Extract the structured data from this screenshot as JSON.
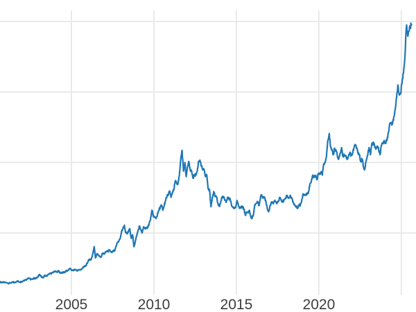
{
  "figure": {
    "background_color": "#ffffff",
    "title": "",
    "legend_visible": false
  },
  "chart_data": {
    "type": "line",
    "title": "",
    "xlabel": "",
    "ylabel": "",
    "grid": true,
    "legend_position": "none",
    "line_color": "#1f77b4",
    "grid_color": "#e7e7e7",
    "tick_label_color": "#3d3d3d",
    "xlim": [
      2000.67,
      2025.89
    ],
    "ylim_estimated": [
      148,
      3742
    ],
    "x_ticks": [
      {
        "year": 2005,
        "label": "2005"
      },
      {
        "year": 2010,
        "label": "2010"
      },
      {
        "year": 2015,
        "label": "2015"
      },
      {
        "year": 2020,
        "label": "2020"
      },
      {
        "year": 2025,
        "label": ""
      }
    ],
    "y_axis": {
      "tick_labels_visible": false,
      "gridline_values_estimated": [
        900,
        1800,
        2700,
        3600
      ]
    },
    "series": [
      {
        "name": "",
        "color": "#1f77b4",
        "points": [
          [
            2000.67,
            272
          ],
          [
            2000.71,
            274
          ],
          [
            2000.79,
            270
          ],
          [
            2000.88,
            266
          ],
          [
            2000.96,
            272
          ],
          [
            2001.04,
            266
          ],
          [
            2001.13,
            261
          ],
          [
            2001.21,
            258
          ],
          [
            2001.29,
            260
          ],
          [
            2001.38,
            268
          ],
          [
            2001.46,
            272
          ],
          [
            2001.54,
            266
          ],
          [
            2001.63,
            274
          ],
          [
            2001.71,
            287
          ],
          [
            2001.79,
            281
          ],
          [
            2001.88,
            275
          ],
          [
            2001.96,
            277
          ],
          [
            2002.04,
            284
          ],
          [
            2002.13,
            297
          ],
          [
            2002.21,
            302
          ],
          [
            2002.29,
            308
          ],
          [
            2002.38,
            327
          ],
          [
            2002.46,
            320
          ],
          [
            2002.54,
            305
          ],
          [
            2002.63,
            312
          ],
          [
            2002.71,
            323
          ],
          [
            2002.79,
            318
          ],
          [
            2002.88,
            322
          ],
          [
            2002.96,
            342
          ],
          [
            2003.04,
            368
          ],
          [
            2003.13,
            350
          ],
          [
            2003.21,
            336
          ],
          [
            2003.29,
            330
          ],
          [
            2003.38,
            360
          ],
          [
            2003.46,
            348
          ],
          [
            2003.54,
            356
          ],
          [
            2003.63,
            372
          ],
          [
            2003.71,
            382
          ],
          [
            2003.79,
            385
          ],
          [
            2003.88,
            395
          ],
          [
            2003.96,
            412
          ],
          [
            2004.04,
            412
          ],
          [
            2004.13,
            398
          ],
          [
            2004.21,
            420
          ],
          [
            2004.29,
            392
          ],
          [
            2004.38,
            388
          ],
          [
            2004.46,
            395
          ],
          [
            2004.54,
            398
          ],
          [
            2004.63,
            407
          ],
          [
            2004.71,
            415
          ],
          [
            2004.79,
            425
          ],
          [
            2004.88,
            445
          ],
          [
            2004.96,
            438
          ],
          [
            2005.04,
            423
          ],
          [
            2005.13,
            426
          ],
          [
            2005.21,
            433
          ],
          [
            2005.29,
            428
          ],
          [
            2005.38,
            418
          ],
          [
            2005.46,
            433
          ],
          [
            2005.54,
            428
          ],
          [
            2005.63,
            440
          ],
          [
            2005.71,
            465
          ],
          [
            2005.79,
            468
          ],
          [
            2005.88,
            485
          ],
          [
            2005.96,
            513
          ],
          [
            2006.04,
            560
          ],
          [
            2006.13,
            556
          ],
          [
            2006.21,
            570
          ],
          [
            2006.29,
            630
          ],
          [
            2006.38,
            725
          ],
          [
            2006.46,
            583
          ],
          [
            2006.54,
            632
          ],
          [
            2006.63,
            622
          ],
          [
            2006.71,
            598
          ],
          [
            2006.79,
            592
          ],
          [
            2006.88,
            638
          ],
          [
            2006.96,
            632
          ],
          [
            2007.04,
            645
          ],
          [
            2007.13,
            668
          ],
          [
            2007.21,
            662
          ],
          [
            2007.29,
            680
          ],
          [
            2007.38,
            662
          ],
          [
            2007.46,
            652
          ],
          [
            2007.54,
            672
          ],
          [
            2007.63,
            672
          ],
          [
            2007.71,
            730
          ],
          [
            2007.79,
            780
          ],
          [
            2007.88,
            800
          ],
          [
            2007.96,
            833
          ],
          [
            2008.04,
            920
          ],
          [
            2008.13,
            960
          ],
          [
            2008.21,
            1000
          ],
          [
            2008.29,
            905
          ],
          [
            2008.38,
            890
          ],
          [
            2008.46,
            920
          ],
          [
            2008.54,
            955
          ],
          [
            2008.63,
            830
          ],
          [
            2008.71,
            875
          ],
          [
            2008.79,
            725
          ],
          [
            2008.88,
            800
          ],
          [
            2008.96,
            865
          ],
          [
            2009.04,
            930
          ],
          [
            2009.13,
            990
          ],
          [
            2009.21,
            940
          ],
          [
            2009.29,
            900
          ],
          [
            2009.38,
            980
          ],
          [
            2009.46,
            955
          ],
          [
            2009.54,
            960
          ],
          [
            2009.63,
            975
          ],
          [
            2009.71,
            1020
          ],
          [
            2009.79,
            1065
          ],
          [
            2009.88,
            1190
          ],
          [
            2009.96,
            1120
          ],
          [
            2010.04,
            1105
          ],
          [
            2010.13,
            1085
          ],
          [
            2010.21,
            1130
          ],
          [
            2010.29,
            1185
          ],
          [
            2010.38,
            1230
          ],
          [
            2010.46,
            1255
          ],
          [
            2010.54,
            1190
          ],
          [
            2010.63,
            1255
          ],
          [
            2010.71,
            1320
          ],
          [
            2010.79,
            1365
          ],
          [
            2010.88,
            1395
          ],
          [
            2010.96,
            1435
          ],
          [
            2011.04,
            1355
          ],
          [
            2011.13,
            1425
          ],
          [
            2011.21,
            1450
          ],
          [
            2011.29,
            1560
          ],
          [
            2011.38,
            1540
          ],
          [
            2011.46,
            1530
          ],
          [
            2011.54,
            1635
          ],
          [
            2011.63,
            1840
          ],
          [
            2011.71,
            1955
          ],
          [
            2011.79,
            1690
          ],
          [
            2011.88,
            1800
          ],
          [
            2011.96,
            1620
          ],
          [
            2012.04,
            1755
          ],
          [
            2012.13,
            1805
          ],
          [
            2012.21,
            1695
          ],
          [
            2012.29,
            1685
          ],
          [
            2012.38,
            1600
          ],
          [
            2012.46,
            1645
          ],
          [
            2012.54,
            1640
          ],
          [
            2012.63,
            1690
          ],
          [
            2012.71,
            1815
          ],
          [
            2012.79,
            1830
          ],
          [
            2012.88,
            1750
          ],
          [
            2012.96,
            1705
          ],
          [
            2013.04,
            1705
          ],
          [
            2013.13,
            1620
          ],
          [
            2013.21,
            1635
          ],
          [
            2013.29,
            1465
          ],
          [
            2013.38,
            1440
          ],
          [
            2013.46,
            1235
          ],
          [
            2013.54,
            1355
          ],
          [
            2013.63,
            1430
          ],
          [
            2013.71,
            1365
          ],
          [
            2013.79,
            1360
          ],
          [
            2013.88,
            1280
          ],
          [
            2013.96,
            1240
          ],
          [
            2014.04,
            1285
          ],
          [
            2014.13,
            1360
          ],
          [
            2014.21,
            1365
          ],
          [
            2014.29,
            1325
          ],
          [
            2014.38,
            1290
          ],
          [
            2014.46,
            1355
          ],
          [
            2014.54,
            1340
          ],
          [
            2014.63,
            1325
          ],
          [
            2014.71,
            1250
          ],
          [
            2014.79,
            1230
          ],
          [
            2014.88,
            1215
          ],
          [
            2014.96,
            1230
          ],
          [
            2015.04,
            1315
          ],
          [
            2015.13,
            1245
          ],
          [
            2015.21,
            1215
          ],
          [
            2015.29,
            1230
          ],
          [
            2015.38,
            1235
          ],
          [
            2015.46,
            1205
          ],
          [
            2015.54,
            1130
          ],
          [
            2015.63,
            1165
          ],
          [
            2015.71,
            1160
          ],
          [
            2015.79,
            1190
          ],
          [
            2015.88,
            1100
          ],
          [
            2015.96,
            1095
          ],
          [
            2016.04,
            1145
          ],
          [
            2016.13,
            1265
          ],
          [
            2016.21,
            1280
          ],
          [
            2016.29,
            1300
          ],
          [
            2016.38,
            1250
          ],
          [
            2016.46,
            1355
          ],
          [
            2016.54,
            1385
          ],
          [
            2016.63,
            1345
          ],
          [
            2016.71,
            1355
          ],
          [
            2016.79,
            1305
          ],
          [
            2016.88,
            1210
          ],
          [
            2016.96,
            1170
          ],
          [
            2017.04,
            1250
          ],
          [
            2017.13,
            1285
          ],
          [
            2017.21,
            1280
          ],
          [
            2017.29,
            1305
          ],
          [
            2017.38,
            1300
          ],
          [
            2017.46,
            1275
          ],
          [
            2017.54,
            1300
          ],
          [
            2017.63,
            1355
          ],
          [
            2017.71,
            1325
          ],
          [
            2017.79,
            1305
          ],
          [
            2017.88,
            1315
          ],
          [
            2017.96,
            1335
          ],
          [
            2018.04,
            1380
          ],
          [
            2018.13,
            1355
          ],
          [
            2018.21,
            1355
          ],
          [
            2018.29,
            1370
          ],
          [
            2018.38,
            1335
          ],
          [
            2018.46,
            1285
          ],
          [
            2018.54,
            1255
          ],
          [
            2018.63,
            1230
          ],
          [
            2018.71,
            1225
          ],
          [
            2018.79,
            1260
          ],
          [
            2018.88,
            1255
          ],
          [
            2018.96,
            1315
          ],
          [
            2019.04,
            1400
          ],
          [
            2019.13,
            1390
          ],
          [
            2019.21,
            1380
          ],
          [
            2019.29,
            1400
          ],
          [
            2019.38,
            1430
          ],
          [
            2019.46,
            1530
          ],
          [
            2019.54,
            1550
          ],
          [
            2019.63,
            1640
          ],
          [
            2019.71,
            1610
          ],
          [
            2019.79,
            1630
          ],
          [
            2019.88,
            1580
          ],
          [
            2019.96,
            1650
          ],
          [
            2020.04,
            1650
          ],
          [
            2020.13,
            1680
          ],
          [
            2020.21,
            1640
          ],
          [
            2020.29,
            1780
          ],
          [
            2020.38,
            1800
          ],
          [
            2020.46,
            1870
          ],
          [
            2020.54,
            2080
          ],
          [
            2020.63,
            2170
          ],
          [
            2020.71,
            2000
          ],
          [
            2020.79,
            1970
          ],
          [
            2020.88,
            1900
          ],
          [
            2020.96,
            1980
          ],
          [
            2021.04,
            1960
          ],
          [
            2021.13,
            1870
          ],
          [
            2021.21,
            1850
          ],
          [
            2021.29,
            1920
          ],
          [
            2021.38,
            1990
          ],
          [
            2021.46,
            1880
          ],
          [
            2021.54,
            1900
          ],
          [
            2021.63,
            1890
          ],
          [
            2021.71,
            1840
          ],
          [
            2021.79,
            1880
          ],
          [
            2021.88,
            1930
          ],
          [
            2021.96,
            1890
          ],
          [
            2022.04,
            1910
          ],
          [
            2022.13,
            1990
          ],
          [
            2022.21,
            2030
          ],
          [
            2022.29,
            1980
          ],
          [
            2022.38,
            1930
          ],
          [
            2022.46,
            1900
          ],
          [
            2022.54,
            1810
          ],
          [
            2022.63,
            1840
          ],
          [
            2022.71,
            1740
          ],
          [
            2022.79,
            1720
          ],
          [
            2022.88,
            1830
          ],
          [
            2022.96,
            1890
          ],
          [
            2023.04,
            1990
          ],
          [
            2023.13,
            1900
          ],
          [
            2023.21,
            2030
          ],
          [
            2023.29,
            2050
          ],
          [
            2023.38,
            2010
          ],
          [
            2023.46,
            1970
          ],
          [
            2023.54,
            2010
          ],
          [
            2023.63,
            1960
          ],
          [
            2023.71,
            1900
          ],
          [
            2023.79,
            2010
          ],
          [
            2023.88,
            2050
          ],
          [
            2023.96,
            2080
          ],
          [
            2024.04,
            2060
          ],
          [
            2024.13,
            2080
          ],
          [
            2024.21,
            2180
          ],
          [
            2024.29,
            2290
          ],
          [
            2024.38,
            2300
          ],
          [
            2024.46,
            2290
          ],
          [
            2024.54,
            2380
          ],
          [
            2024.63,
            2480
          ],
          [
            2024.71,
            2620
          ],
          [
            2024.79,
            2790
          ],
          [
            2024.88,
            2660
          ],
          [
            2024.96,
            2680
          ],
          [
            2025.04,
            2810
          ],
          [
            2025.13,
            2940
          ],
          [
            2025.21,
            3120
          ],
          [
            2025.29,
            3480
          ],
          [
            2025.33,
            3540
          ],
          [
            2025.38,
            3420
          ],
          [
            2025.46,
            3480
          ],
          [
            2025.54,
            3530
          ],
          [
            2025.62,
            3560
          ]
        ]
      }
    ]
  }
}
